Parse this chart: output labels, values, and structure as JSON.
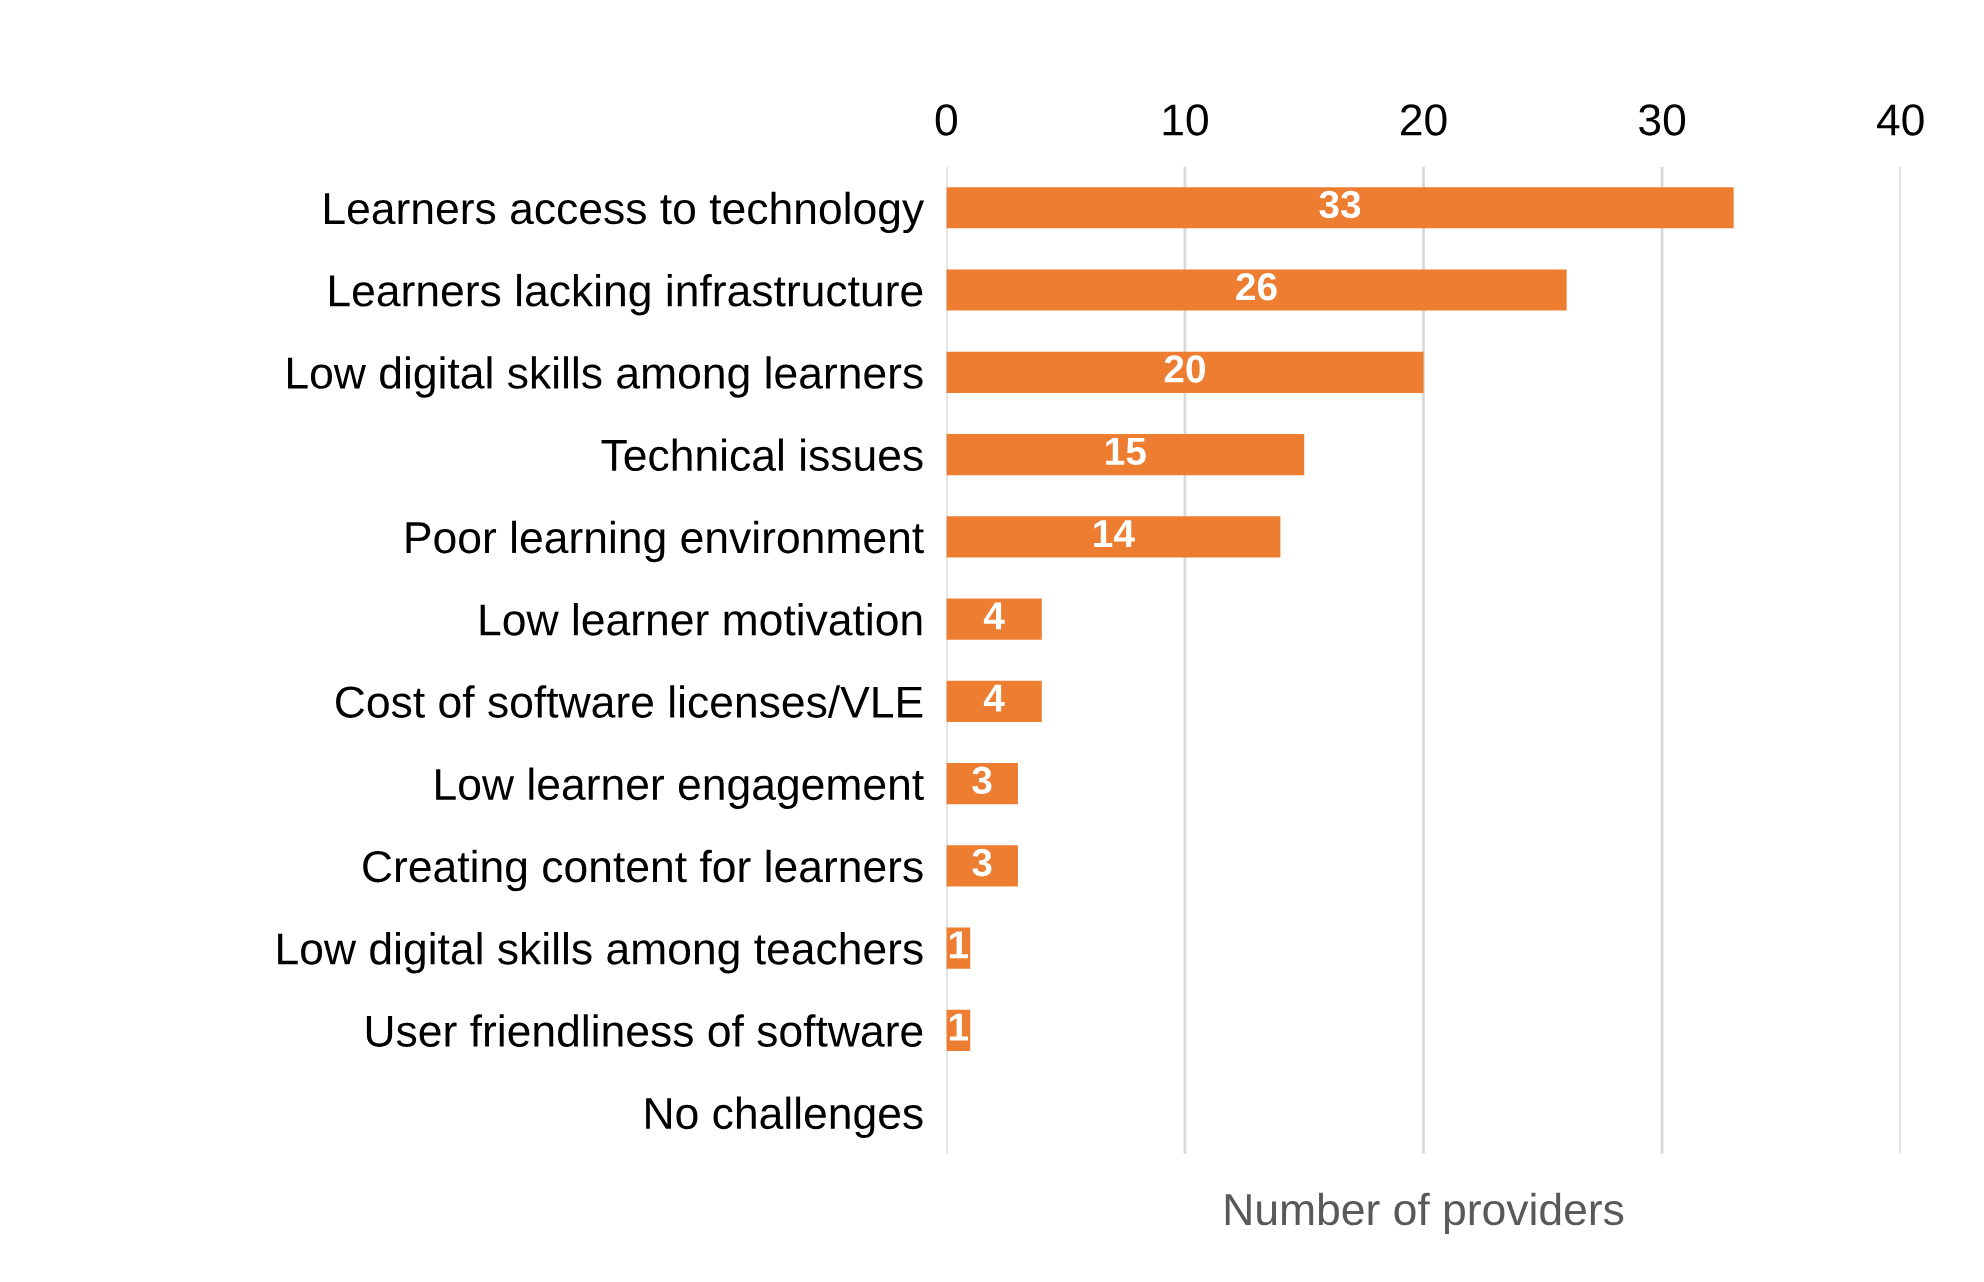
{
  "chart_data": {
    "type": "bar",
    "orientation": "horizontal",
    "xlabel": "Number of providers",
    "categories": [
      "Learners access to technology",
      "Learners lacking infrastructure",
      "Low digital skills among learners",
      "Technical issues",
      "Poor learning environment",
      "Low learner motivation",
      "Cost of software licenses/VLE",
      "Low learner engagement",
      "Creating content for learners",
      "Low digital skills among teachers",
      "User friendliness of software",
      "No challenges"
    ],
    "values": [
      33,
      26,
      20,
      15,
      14,
      4,
      4,
      3,
      3,
      1,
      1,
      0
    ],
    "value_labels": [
      "33",
      "26",
      "20",
      "15",
      "14",
      "4",
      "4",
      "3",
      "3",
      "1",
      "1",
      null
    ],
    "color": "#ed7d31",
    "xlim": [
      0,
      40
    ],
    "xticks": [
      0,
      10,
      20,
      30,
      40
    ],
    "grid": "x",
    "legend": false
  }
}
